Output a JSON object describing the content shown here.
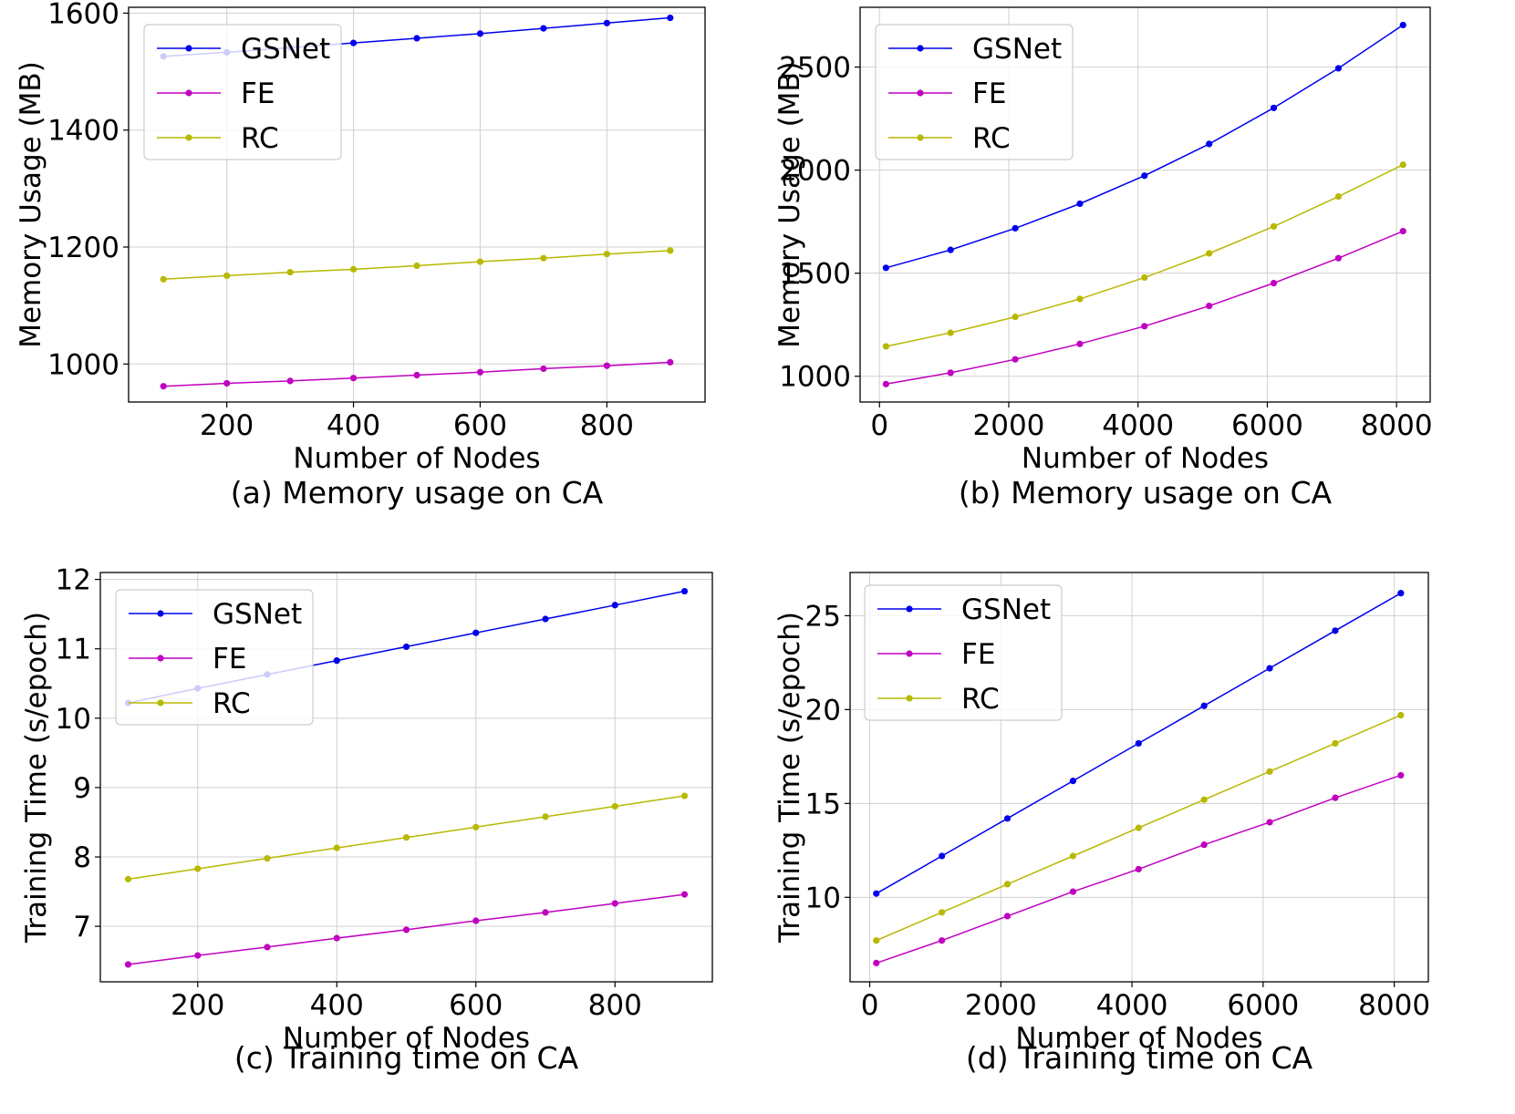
{
  "colors": {
    "GSNet": "#0000ee",
    "FE": "#c000c0",
    "RC": "#b8b800",
    "grid": "#d0d0d0"
  },
  "chart_data": [
    {
      "type": "line",
      "caption": "(a) Memory usage on CA",
      "xlabel": "Number of Nodes",
      "ylabel": "Memory Usage (MB)",
      "xlim": [
        45,
        955
      ],
      "ylim": [
        935,
        1610
      ],
      "xticks": [
        200,
        400,
        600,
        800
      ],
      "xtick_labels": [
        "200",
        "400",
        "600",
        "800"
      ],
      "yticks": [
        1000,
        1200,
        1400,
        1600
      ],
      "ytick_labels": [
        "1000",
        "1200",
        "1400",
        "1600"
      ],
      "legend_position": "top-left",
      "x": [
        100,
        200,
        300,
        400,
        500,
        600,
        700,
        800,
        900
      ],
      "series": [
        {
          "name": "GSNet",
          "values": [
            1526,
            1533,
            1541,
            1549,
            1557,
            1565,
            1574,
            1583,
            1592
          ]
        },
        {
          "name": "FE",
          "values": [
            962,
            967,
            971,
            976,
            981,
            986,
            992,
            997,
            1003
          ]
        },
        {
          "name": "RC",
          "values": [
            1145,
            1151,
            1157,
            1162,
            1168,
            1175,
            1181,
            1188,
            1194
          ]
        }
      ]
    },
    {
      "type": "line",
      "caption": "(b)  Memory usage on CA",
      "xlabel": "Number of Nodes",
      "ylabel": "Memory Usage (MB)",
      "xlim": [
        -300,
        8520
      ],
      "ylim": [
        875,
        2790
      ],
      "xticks": [
        0,
        2000,
        4000,
        6000,
        8000
      ],
      "xtick_labels": [
        "0",
        "2000",
        "4000",
        "6000",
        "8000"
      ],
      "yticks": [
        1000,
        1500,
        2000,
        2500
      ],
      "ytick_labels": [
        "1000",
        "1500",
        "2000",
        "2500"
      ],
      "legend_position": "top-left",
      "x": [
        100,
        1100,
        2100,
        3100,
        4100,
        5100,
        6100,
        7100,
        8100
      ],
      "series": [
        {
          "name": "GSNet",
          "values": [
            1526,
            1613,
            1718,
            1837,
            1973,
            2127,
            2302,
            2494,
            2704
          ]
        },
        {
          "name": "FE",
          "values": [
            962,
            1017,
            1082,
            1157,
            1243,
            1341,
            1452,
            1573,
            1704
          ]
        },
        {
          "name": "RC",
          "values": [
            1145,
            1211,
            1288,
            1375,
            1479,
            1596,
            1727,
            1872,
            2026
          ]
        }
      ]
    },
    {
      "type": "line",
      "caption": "(c) Training time on CA",
      "xlabel": "Number of Nodes",
      "ylabel": "Training Time (s/epoch)",
      "xlim": [
        60,
        940
      ],
      "ylim": [
        6.2,
        12.1
      ],
      "xticks": [
        200,
        400,
        600,
        800
      ],
      "xtick_labels": [
        "200",
        "400",
        "600",
        "800"
      ],
      "yticks": [
        7,
        8,
        9,
        10,
        11,
        12
      ],
      "ytick_labels": [
        "7",
        "8",
        "9",
        "10",
        "11",
        "12"
      ],
      "legend_position": "top-left",
      "x": [
        100,
        200,
        300,
        400,
        500,
        600,
        700,
        800,
        900
      ],
      "series": [
        {
          "name": "GSNet",
          "values": [
            10.22,
            10.43,
            10.63,
            10.83,
            11.03,
            11.23,
            11.43,
            11.63,
            11.83
          ]
        },
        {
          "name": "FE",
          "values": [
            6.45,
            6.58,
            6.7,
            6.83,
            6.95,
            7.08,
            7.2,
            7.33,
            7.46
          ]
        },
        {
          "name": "RC",
          "values": [
            7.68,
            7.83,
            7.98,
            8.13,
            8.28,
            8.43,
            8.58,
            8.73,
            8.88
          ]
        }
      ]
    },
    {
      "type": "line",
      "caption": "(d) Training time on CA",
      "xlabel": "Number of Nodes",
      "ylabel": "Training Time (s/epoch)",
      "xlim": [
        -300,
        8520
      ],
      "ylim": [
        5.5,
        27.3
      ],
      "xticks": [
        0,
        2000,
        4000,
        6000,
        8000
      ],
      "xtick_labels": [
        "0",
        "2000",
        "4000",
        "6000",
        "8000"
      ],
      "yticks": [
        10,
        15,
        20,
        25
      ],
      "ytick_labels": [
        "10",
        "15",
        "20",
        "25"
      ],
      "legend_position": "top-left",
      "x": [
        100,
        1100,
        2100,
        3100,
        4100,
        5100,
        6100,
        7100,
        8100
      ],
      "series": [
        {
          "name": "GSNet",
          "values": [
            10.2,
            12.2,
            14.2,
            16.2,
            18.2,
            20.2,
            22.2,
            24.2,
            26.2
          ]
        },
        {
          "name": "FE",
          "values": [
            6.5,
            7.7,
            9.0,
            10.3,
            11.5,
            12.8,
            14.0,
            15.3,
            16.5
          ]
        },
        {
          "name": "RC",
          "values": [
            7.7,
            9.2,
            10.7,
            12.2,
            13.7,
            15.2,
            16.7,
            18.2,
            19.7
          ]
        }
      ]
    }
  ]
}
